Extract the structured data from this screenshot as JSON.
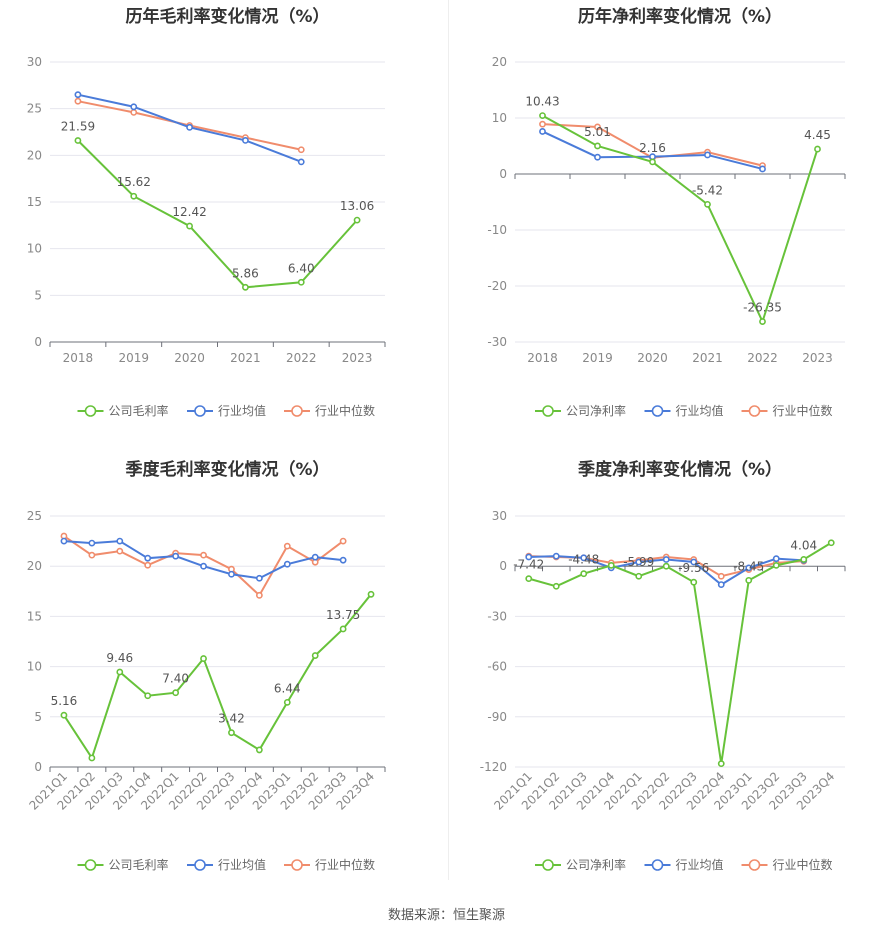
{
  "source": "数据来源：恒生聚源",
  "colors": {
    "company": "#67c23a",
    "avg": "#4a7bd9",
    "median": "#f08c6c"
  },
  "chart_data": [
    {
      "type": "line",
      "title": "历年毛利率变化情况（%）",
      "categories": [
        "2018",
        "2019",
        "2020",
        "2021",
        "2022",
        "2023"
      ],
      "ylim": [
        0,
        30
      ],
      "yticks": [
        0,
        5,
        10,
        15,
        20,
        25,
        30
      ],
      "tick_labels": [
        "2018",
        "2019",
        "2020",
        "2021",
        "2022",
        "2023"
      ],
      "series": [
        {
          "name": "公司毛利率",
          "values": [
            21.59,
            15.62,
            12.42,
            5.86,
            6.4,
            13.06
          ],
          "labels": [
            "21.59",
            "15.62",
            "12.42",
            "5.86",
            "6.40",
            "13.06"
          ]
        },
        {
          "name": "行业均值",
          "values": [
            26.5,
            25.2,
            23.0,
            21.6,
            19.3,
            null
          ]
        },
        {
          "name": "行业中位数",
          "values": [
            25.8,
            24.6,
            23.2,
            21.9,
            20.6,
            null
          ]
        }
      ],
      "grid": true,
      "legend": "bottom"
    },
    {
      "type": "line",
      "title": "历年净利率变化情况（%）",
      "categories": [
        "2018",
        "2019",
        "2020",
        "2021",
        "2022",
        "2023"
      ],
      "ylim": [
        -30,
        20
      ],
      "yticks": [
        -30,
        -20,
        -10,
        0,
        10,
        20
      ],
      "tick_labels": [
        "2018",
        "2019",
        "2020",
        "2021",
        "2022",
        "2023"
      ],
      "series": [
        {
          "name": "公司净利率",
          "values": [
            10.43,
            5.01,
            2.16,
            -5.42,
            -26.35,
            4.45
          ],
          "labels": [
            "10.43",
            "5.01",
            "2.16",
            "-5.42",
            "-26.35",
            "4.45"
          ]
        },
        {
          "name": "行业均值",
          "values": [
            7.6,
            3.0,
            3.1,
            3.4,
            0.9,
            null
          ]
        },
        {
          "name": "行业中位数",
          "values": [
            8.9,
            8.4,
            2.9,
            3.9,
            1.5,
            null
          ]
        }
      ],
      "grid": true,
      "legend": "bottom"
    },
    {
      "type": "line",
      "title": "季度毛利率变化情况（%）",
      "categories": [
        "2021Q1",
        "2021Q2",
        "2021Q3",
        "2021Q4",
        "2022Q1",
        "2022Q2",
        "2022Q3",
        "2022Q4",
        "2023Q1",
        "2023Q2",
        "2023Q3",
        "2023Q4"
      ],
      "ylim": [
        0,
        25
      ],
      "yticks": [
        0,
        5,
        10,
        15,
        20,
        25
      ],
      "tick_labels": [
        "2021Q1",
        "2021Q2",
        "2021Q3",
        "2021Q4",
        "2022Q1",
        "2022Q2",
        "2022Q3",
        "2022Q4",
        "2023Q1",
        "2023Q2",
        "2023Q3",
        "2023Q4"
      ],
      "series": [
        {
          "name": "公司毛利率",
          "values": [
            5.16,
            0.9,
            9.46,
            7.1,
            7.4,
            10.8,
            3.42,
            1.7,
            6.44,
            11.1,
            13.75,
            17.2
          ],
          "labels": [
            "5.16",
            "",
            "9.46",
            "",
            "7.40",
            "",
            "3.42",
            "",
            "6.44",
            "",
            "13.75",
            ""
          ]
        },
        {
          "name": "行业均值",
          "values": [
            22.5,
            22.3,
            22.5,
            20.8,
            21.0,
            20.0,
            19.2,
            18.8,
            20.2,
            20.9,
            20.6,
            null
          ]
        },
        {
          "name": "行业中位数",
          "values": [
            23.0,
            21.1,
            21.5,
            20.1,
            21.3,
            21.1,
            19.7,
            17.1,
            22.0,
            20.4,
            22.5,
            null
          ]
        }
      ],
      "grid": true,
      "legend": "bottom"
    },
    {
      "type": "line",
      "title": "季度净利率变化情况（%）",
      "categories": [
        "2021Q1",
        "2021Q2",
        "2021Q3",
        "2021Q4",
        "2022Q1",
        "2022Q2",
        "2022Q3",
        "2022Q4",
        "2023Q1",
        "2023Q2",
        "2023Q3",
        "2023Q4"
      ],
      "ylim": [
        -120,
        30
      ],
      "yticks": [
        -120,
        -90,
        -60,
        -30,
        0,
        30
      ],
      "tick_labels": [
        "2021Q1",
        "2021Q2",
        "2021Q3",
        "2021Q4",
        "2022Q1",
        "2022Q2",
        "2022Q3",
        "2022Q4",
        "2023Q1",
        "2023Q2",
        "2023Q3",
        "2023Q4"
      ],
      "series": [
        {
          "name": "公司净利率",
          "values": [
            -7.42,
            -12.0,
            -4.48,
            0.5,
            -5.99,
            0.0,
            -9.56,
            -118.0,
            -8.45,
            0.5,
            4.04,
            14.0
          ],
          "labels": [
            "-7.42",
            "",
            "-4.48",
            "",
            "-5.99",
            "",
            "-9.56",
            "",
            "-8.45",
            "",
            "4.04",
            ""
          ]
        },
        {
          "name": "行业均值",
          "values": [
            5.5,
            6.0,
            5.0,
            -1.0,
            2.5,
            4.0,
            2.5,
            -11.0,
            -1.0,
            4.5,
            3.5,
            null
          ]
        },
        {
          "name": "行业中位数",
          "values": [
            6.0,
            5.5,
            5.0,
            2.0,
            3.5,
            5.5,
            4.0,
            -6.0,
            -2.0,
            2.0,
            3.0,
            null
          ]
        }
      ],
      "grid": true,
      "legend": "bottom"
    }
  ]
}
